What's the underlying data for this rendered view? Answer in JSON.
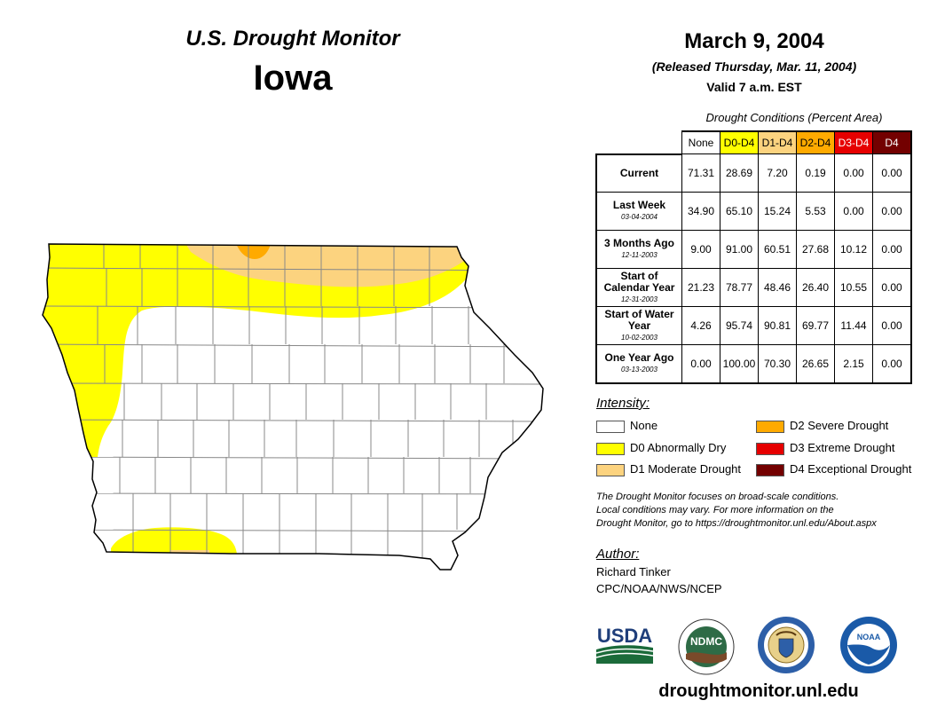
{
  "header": {
    "product": "U.S. Drought Monitor",
    "state": "Iowa",
    "date": "March 9, 2004",
    "released": "(Released Thursday, Mar. 11, 2004)",
    "valid": "Valid 7 a.m. EST"
  },
  "table": {
    "caption": "Drought Conditions (Percent Area)",
    "columns": [
      {
        "label": "None",
        "bg": "#ffffff",
        "fg": "#000000"
      },
      {
        "label": "D0-D4",
        "bg": "#ffff00",
        "fg": "#000000"
      },
      {
        "label": "D1-D4",
        "bg": "#fcd37f",
        "fg": "#000000"
      },
      {
        "label": "D2-D4",
        "bg": "#ffaa00",
        "fg": "#000000"
      },
      {
        "label": "D3-D4",
        "bg": "#e60000",
        "fg": "#ffffff"
      },
      {
        "label": "D4",
        "bg": "#730000",
        "fg": "#ffffff"
      }
    ],
    "rows": [
      {
        "label": "Current",
        "date": "",
        "values": [
          "71.31",
          "28.69",
          "7.20",
          "0.19",
          "0.00",
          "0.00"
        ]
      },
      {
        "label": "Last Week",
        "date": "03-04-2004",
        "values": [
          "34.90",
          "65.10",
          "15.24",
          "5.53",
          "0.00",
          "0.00"
        ]
      },
      {
        "label": "3 Months Ago",
        "date": "12-11-2003",
        "values": [
          "9.00",
          "91.00",
          "60.51",
          "27.68",
          "10.12",
          "0.00"
        ]
      },
      {
        "label": "Start of Calendar Year",
        "date": "12-31-2003",
        "values": [
          "21.23",
          "78.77",
          "48.46",
          "26.40",
          "10.55",
          "0.00"
        ]
      },
      {
        "label": "Start of Water Year",
        "date": "10-02-2003",
        "values": [
          "4.26",
          "95.74",
          "90.81",
          "69.77",
          "11.44",
          "0.00"
        ]
      },
      {
        "label": "One Year Ago",
        "date": "03-13-2003",
        "values": [
          "0.00",
          "100.00",
          "70.30",
          "26.65",
          "2.15",
          "0.00"
        ]
      }
    ]
  },
  "legend": {
    "title": "Intensity:",
    "items": [
      {
        "label": "None",
        "color": "#ffffff"
      },
      {
        "label": "D0 Abnormally Dry",
        "color": "#ffff00"
      },
      {
        "label": "D1 Moderate Drought",
        "color": "#fcd37f"
      },
      {
        "label": "D2 Severe Drought",
        "color": "#ffaa00"
      },
      {
        "label": "D3 Extreme Drought",
        "color": "#e60000"
      },
      {
        "label": "D4 Exceptional Drought",
        "color": "#730000"
      }
    ]
  },
  "note": {
    "line1": "The Drought Monitor focuses on broad-scale conditions.",
    "line2": "Local conditions may vary. For more information on the",
    "line3": "Drought Monitor, go to https://droughtmonitor.unl.edu/About.aspx"
  },
  "author": {
    "label": "Author:",
    "name": "Richard Tinker",
    "org": "CPC/NOAA/NWS/NCEP"
  },
  "logos": {
    "usda": "USDA",
    "ndmc": "NDMC",
    "noaa": "NOAA"
  },
  "website": "droughtmonitor.unl.edu",
  "map": {
    "colors": {
      "none": "#ffffff",
      "d0": "#ffff00",
      "d1": "#fcd37f",
      "d2": "#ffaa00",
      "border": "#000000",
      "county": "#888888"
    }
  }
}
